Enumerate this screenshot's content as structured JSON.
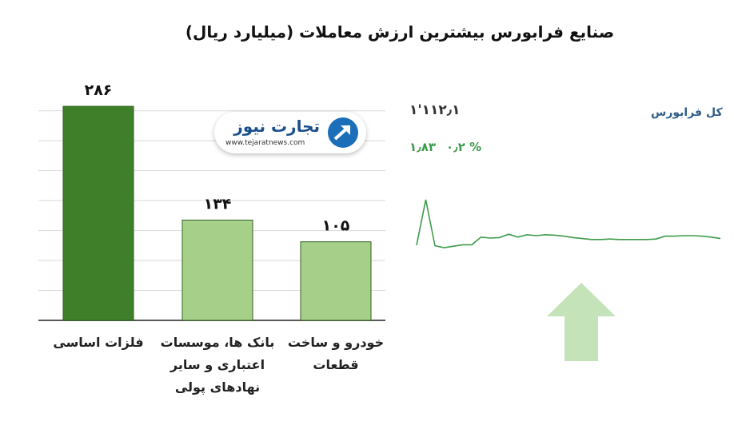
{
  "title": "صنایع فرابورس بیشترین ارزش معاملات  (میلیارد ریال)",
  "logo": {
    "brand": "تجارت نیوز",
    "site": "www.tejaratnews.com"
  },
  "index": {
    "name": "کل فرابورس",
    "value": "۱'۱۱۲٫۱",
    "change": "۱٫۸۳",
    "change_pct": "۰٫۲ %",
    "direction": "up",
    "color_up": "#3d9b4a"
  },
  "chart_data": [
    {
      "type": "bar",
      "categories": [
        "فلزات اساسی",
        "بانک ها، موسسات اعتباری و سایر نهادهای پولی",
        "خودرو و ساخت قطعات"
      ],
      "category_lines": [
        [
          "فلزات اساسی"
        ],
        [
          "بانک ها، موسسات",
          "اعتباری و سایر",
          "نهادهای پولی"
        ],
        [
          "خودرو و ساخت",
          "قطعات"
        ]
      ],
      "values": [
        286,
        134,
        105
      ],
      "data_labels": [
        "۲۸۶",
        "۱۳۴",
        "۱۰۵"
      ],
      "ylim": [
        0,
        300
      ],
      "grid": true,
      "colors": [
        "#3f7f2a",
        "#a6d08a",
        "#a6d08a"
      ]
    },
    {
      "type": "line",
      "values": [
        1106.5,
        1116.0,
        1106.4,
        1106.0,
        1106.3,
        1106.6,
        1106.6,
        1108.2,
        1108.0,
        1108.1,
        1108.8,
        1108.2,
        1108.7,
        1108.5,
        1108.7,
        1108.6,
        1108.4,
        1108.1,
        1107.9,
        1107.7,
        1107.7,
        1107.8,
        1107.7,
        1107.7,
        1107.7,
        1107.7,
        1107.8,
        1108.4,
        1108.4,
        1108.5,
        1108.5,
        1108.4,
        1108.2,
        1107.9
      ],
      "ylim": [
        1104,
        1117
      ],
      "color": "#3d9b4a"
    }
  ]
}
